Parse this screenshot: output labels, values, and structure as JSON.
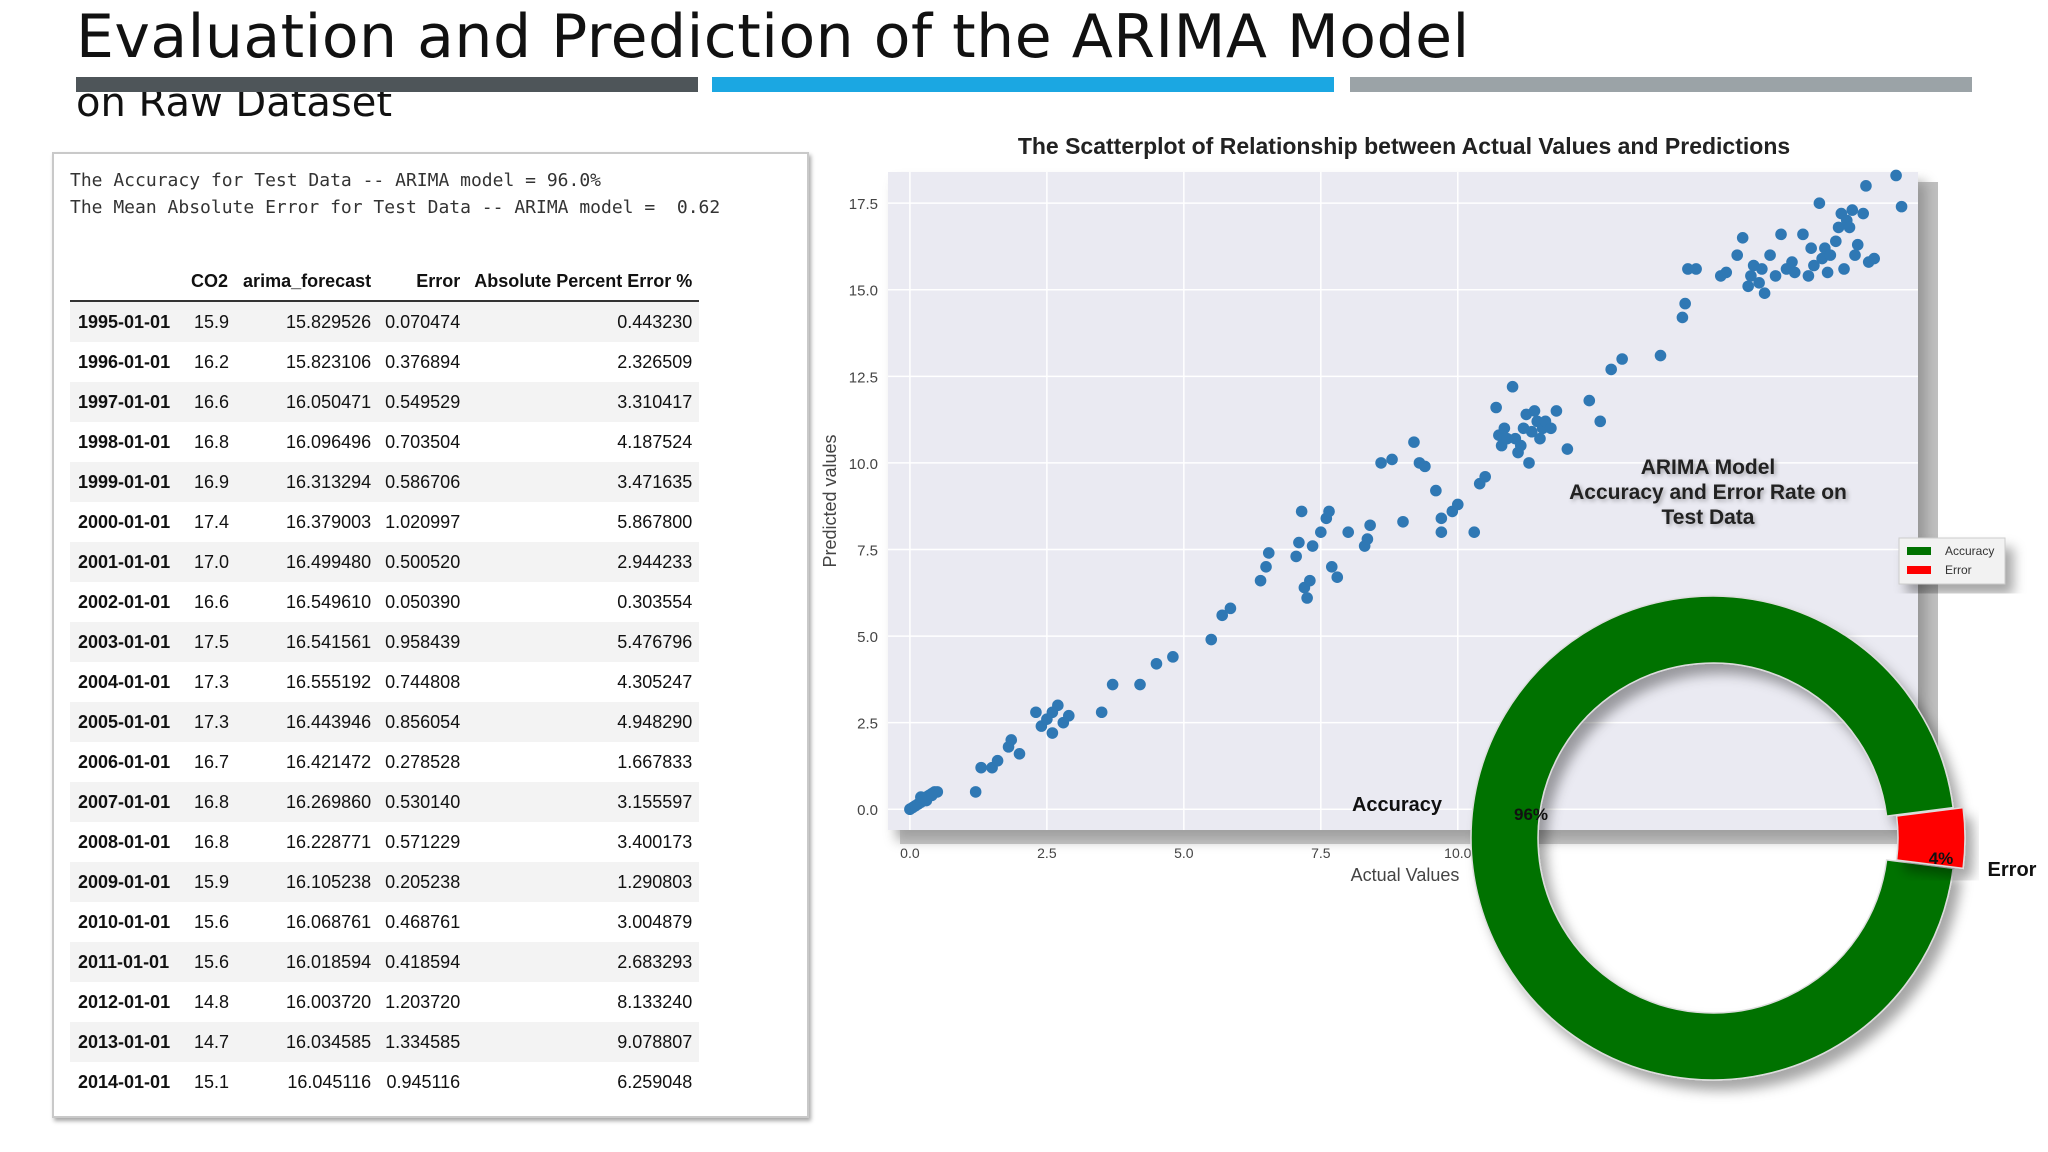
{
  "header": {
    "title": "Evaluation and Prediction of the ARIMA Model",
    "subtitle": "on Raw Dataset",
    "bar_colors": [
      "#4e5559",
      "#1ba7e2",
      "#9ba3a7"
    ]
  },
  "notebook": {
    "accuracy_line": "The Accuracy for Test Data -- ARIMA model = 96.0%",
    "mae_line": "The Mean Absolute Error for Test Data -- ARIMA model =  0.62",
    "table": {
      "columns": [
        "",
        "CO2",
        "arima_forecast",
        "Error",
        "Absolute Percent Error %"
      ],
      "rows": [
        [
          "1995-01-01",
          "15.9",
          "15.829526",
          "0.070474",
          "0.443230"
        ],
        [
          "1996-01-01",
          "16.2",
          "15.823106",
          "0.376894",
          "2.326509"
        ],
        [
          "1997-01-01",
          "16.6",
          "16.050471",
          "0.549529",
          "3.310417"
        ],
        [
          "1998-01-01",
          "16.8",
          "16.096496",
          "0.703504",
          "4.187524"
        ],
        [
          "1999-01-01",
          "16.9",
          "16.313294",
          "0.586706",
          "3.471635"
        ],
        [
          "2000-01-01",
          "17.4",
          "16.379003",
          "1.020997",
          "5.867800"
        ],
        [
          "2001-01-01",
          "17.0",
          "16.499480",
          "0.500520",
          "2.944233"
        ],
        [
          "2002-01-01",
          "16.6",
          "16.549610",
          "0.050390",
          "0.303554"
        ],
        [
          "2003-01-01",
          "17.5",
          "16.541561",
          "0.958439",
          "5.476796"
        ],
        [
          "2004-01-01",
          "17.3",
          "16.555192",
          "0.744808",
          "4.305247"
        ],
        [
          "2005-01-01",
          "17.3",
          "16.443946",
          "0.856054",
          "4.948290"
        ],
        [
          "2006-01-01",
          "16.7",
          "16.421472",
          "0.278528",
          "1.667833"
        ],
        [
          "2007-01-01",
          "16.8",
          "16.269860",
          "0.530140",
          "3.155597"
        ],
        [
          "2008-01-01",
          "16.8",
          "16.228771",
          "0.571229",
          "3.400173"
        ],
        [
          "2009-01-01",
          "15.9",
          "16.105238",
          "0.205238",
          "1.290803"
        ],
        [
          "2010-01-01",
          "15.6",
          "16.068761",
          "0.468761",
          "3.004879"
        ],
        [
          "2011-01-01",
          "15.6",
          "16.018594",
          "0.418594",
          "2.683293"
        ],
        [
          "2012-01-01",
          "14.8",
          "16.003720",
          "1.203720",
          "8.133240"
        ],
        [
          "2013-01-01",
          "14.7",
          "16.034585",
          "1.334585",
          "9.078807"
        ],
        [
          "2014-01-01",
          "15.1",
          "16.045116",
          "0.945116",
          "6.259048"
        ]
      ]
    }
  },
  "chart_data": [
    {
      "type": "scatter",
      "title": "The Scatterplot of Relationship between Actual Values and Predictions",
      "xlabel": "Actual Values",
      "ylabel": "Predicted values",
      "xlim": [
        -0.4,
        18.4
      ],
      "ylim": [
        -0.6,
        18.4
      ],
      "xticks": [
        "0.0",
        "2.5",
        "5.0",
        "7.5",
        "10.0"
      ],
      "yticks": [
        "0.0",
        "2.5",
        "5.0",
        "7.5",
        "10.0",
        "12.5",
        "15.0",
        "17.5"
      ],
      "grid": true,
      "color": "#2f78b4",
      "points": [
        [
          0.0,
          0.0
        ],
        [
          0.05,
          0.05
        ],
        [
          0.1,
          0.1
        ],
        [
          0.15,
          0.15
        ],
        [
          0.2,
          0.2
        ],
        [
          0.25,
          0.3
        ],
        [
          0.3,
          0.35
        ],
        [
          0.35,
          0.4
        ],
        [
          0.4,
          0.45
        ],
        [
          0.45,
          0.5
        ],
        [
          0.5,
          0.5
        ],
        [
          0.2,
          0.35
        ],
        [
          0.3,
          0.25
        ],
        [
          0.4,
          0.4
        ],
        [
          1.2,
          0.5
        ],
        [
          1.3,
          1.2
        ],
        [
          1.5,
          1.2
        ],
        [
          1.6,
          1.4
        ],
        [
          1.8,
          1.8
        ],
        [
          1.85,
          2.0
        ],
        [
          2.0,
          1.6
        ],
        [
          2.3,
          2.8
        ],
        [
          2.4,
          2.4
        ],
        [
          2.5,
          2.6
        ],
        [
          2.6,
          2.8
        ],
        [
          2.6,
          2.2
        ],
        [
          2.7,
          3.0
        ],
        [
          2.8,
          2.5
        ],
        [
          2.9,
          2.7
        ],
        [
          3.5,
          2.8
        ],
        [
          3.7,
          3.6
        ],
        [
          4.2,
          3.6
        ],
        [
          4.5,
          4.2
        ],
        [
          4.8,
          4.4
        ],
        [
          5.5,
          4.9
        ],
        [
          5.7,
          5.6
        ],
        [
          5.85,
          5.8
        ],
        [
          6.4,
          6.6
        ],
        [
          6.5,
          7.0
        ],
        [
          6.55,
          7.4
        ],
        [
          7.05,
          7.3
        ],
        [
          7.1,
          7.7
        ],
        [
          7.15,
          8.6
        ],
        [
          7.2,
          6.4
        ],
        [
          7.25,
          6.1
        ],
        [
          7.3,
          6.6
        ],
        [
          7.35,
          7.6
        ],
        [
          7.5,
          8.0
        ],
        [
          7.6,
          8.4
        ],
        [
          7.65,
          8.6
        ],
        [
          7.7,
          7.0
        ],
        [
          7.8,
          6.7
        ],
        [
          8.0,
          8.0
        ],
        [
          8.3,
          7.6
        ],
        [
          8.35,
          7.8
        ],
        [
          8.4,
          8.2
        ],
        [
          8.6,
          10.0
        ],
        [
          8.8,
          10.1
        ],
        [
          9.0,
          8.3
        ],
        [
          9.2,
          10.6
        ],
        [
          9.3,
          10.0
        ],
        [
          9.4,
          9.9
        ],
        [
          9.6,
          9.2
        ],
        [
          9.7,
          8.0
        ],
        [
          9.7,
          8.4
        ],
        [
          9.9,
          8.6
        ],
        [
          10.0,
          8.8
        ],
        [
          10.3,
          8.0
        ],
        [
          10.4,
          9.4
        ],
        [
          10.5,
          9.6
        ],
        [
          10.7,
          11.6
        ],
        [
          10.75,
          10.8
        ],
        [
          10.8,
          10.5
        ],
        [
          10.85,
          11.0
        ],
        [
          10.9,
          10.7
        ],
        [
          11.0,
          12.2
        ],
        [
          11.05,
          10.7
        ],
        [
          11.1,
          10.3
        ],
        [
          11.15,
          10.5
        ],
        [
          11.2,
          11.0
        ],
        [
          11.25,
          11.4
        ],
        [
          11.3,
          10.0
        ],
        [
          11.35,
          10.9
        ],
        [
          11.4,
          11.5
        ],
        [
          11.45,
          11.2
        ],
        [
          11.5,
          10.7
        ],
        [
          11.55,
          11.0
        ],
        [
          11.6,
          11.2
        ],
        [
          11.7,
          11.0
        ],
        [
          11.8,
          11.5
        ],
        [
          12.0,
          10.4
        ],
        [
          12.4,
          11.8
        ],
        [
          12.6,
          11.2
        ],
        [
          12.8,
          12.7
        ],
        [
          13.0,
          13.0
        ],
        [
          13.7,
          13.1
        ],
        [
          14.1,
          14.2
        ],
        [
          14.15,
          14.6
        ],
        [
          14.2,
          15.6
        ],
        [
          14.35,
          15.6
        ],
        [
          14.8,
          15.4
        ],
        [
          14.9,
          15.5
        ],
        [
          15.1,
          16.0
        ],
        [
          15.2,
          16.5
        ],
        [
          15.3,
          15.1
        ],
        [
          15.35,
          15.4
        ],
        [
          15.4,
          15.7
        ],
        [
          15.5,
          15.2
        ],
        [
          15.55,
          15.6
        ],
        [
          15.6,
          14.9
        ],
        [
          15.7,
          16.0
        ],
        [
          15.8,
          15.4
        ],
        [
          15.9,
          16.6
        ],
        [
          16.0,
          15.6
        ],
        [
          16.1,
          15.8
        ],
        [
          16.15,
          15.5
        ],
        [
          16.3,
          16.6
        ],
        [
          16.4,
          15.4
        ],
        [
          16.45,
          16.2
        ],
        [
          16.5,
          15.7
        ],
        [
          16.6,
          17.5
        ],
        [
          16.65,
          15.9
        ],
        [
          16.7,
          16.2
        ],
        [
          16.75,
          15.5
        ],
        [
          16.8,
          16.0
        ],
        [
          16.9,
          16.4
        ],
        [
          16.95,
          16.8
        ],
        [
          17.0,
          17.2
        ],
        [
          17.05,
          15.6
        ],
        [
          17.1,
          17.0
        ],
        [
          17.15,
          16.8
        ],
        [
          17.2,
          17.3
        ],
        [
          17.25,
          16.0
        ],
        [
          17.3,
          16.3
        ],
        [
          17.4,
          17.2
        ],
        [
          17.45,
          18.0
        ],
        [
          17.5,
          15.8
        ],
        [
          17.6,
          15.9
        ],
        [
          18.0,
          18.3
        ],
        [
          18.1,
          17.4
        ]
      ]
    },
    {
      "type": "pie",
      "title": "ARIMA Model Accuracy and Error Rate on Test Data",
      "labels": [
        "Accuracy",
        "Error"
      ],
      "values": [
        96,
        4
      ],
      "value_labels": [
        "96%",
        "4%"
      ],
      "colors": [
        "#007200",
        "#ff0000"
      ],
      "donut": true,
      "legend": "right",
      "exploded": "Error"
    }
  ]
}
